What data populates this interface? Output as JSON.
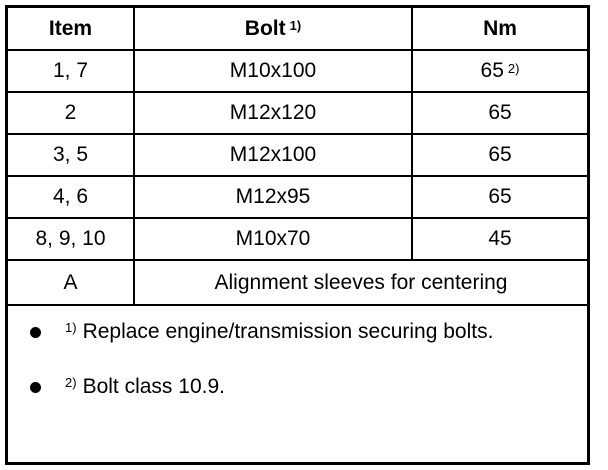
{
  "table": {
    "headers": [
      {
        "label": "Item",
        "footnote": ""
      },
      {
        "label": "Bolt",
        "footnote": "1)"
      },
      {
        "label": "Nm",
        "footnote": ""
      }
    ],
    "rows": [
      {
        "item": "1, 7",
        "bolt": "M10x100",
        "nm": "65",
        "nm_footnote": "2)"
      },
      {
        "item": "2",
        "bolt": "M12x120",
        "nm": "65",
        "nm_footnote": ""
      },
      {
        "item": "3, 5",
        "bolt": "M12x100",
        "nm": "65",
        "nm_footnote": ""
      },
      {
        "item": "4, 6",
        "bolt": "M12x95",
        "nm": "65",
        "nm_footnote": ""
      },
      {
        "item": "8, 9, 10",
        "bolt": "M10x70",
        "nm": "45",
        "nm_footnote": ""
      }
    ],
    "span_row": {
      "item": "A",
      "description": "Alignment sleeves for centering"
    },
    "notes": [
      {
        "marker": "1)",
        "text": "Replace engine/transmission securing bolts."
      },
      {
        "marker": "2)",
        "text": "Bolt class 10.9."
      }
    ]
  }
}
